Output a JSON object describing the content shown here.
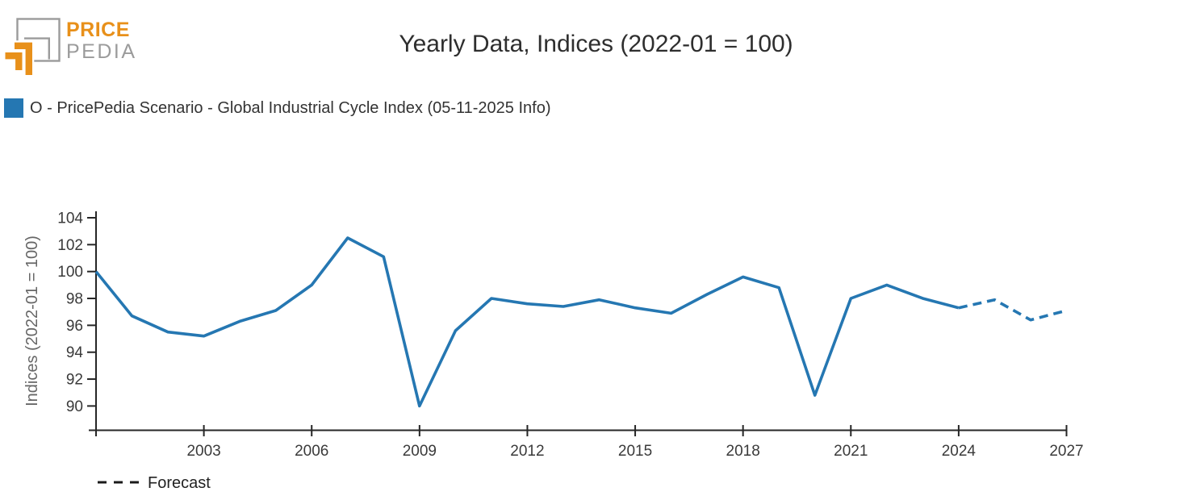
{
  "logo": {
    "brand_top": "PRICE",
    "brand_bottom": "PEDIA",
    "orange": "#E8901A",
    "gray": "#9B9B9B"
  },
  "header": {
    "title": "Yearly Data, Indices (2022-01 = 100)"
  },
  "legend": {
    "swatch_color": "#2577B2",
    "label": "O - PricePedia Scenario - Global Industrial Cycle Index (05-11-2025 Info)"
  },
  "forecast_legend": {
    "label": "Forecast"
  },
  "chart_data": {
    "type": "line",
    "title": "Yearly Data, Indices (2022-01 = 100)",
    "xlabel": "",
    "ylabel": "Indices (2022-01 = 100)",
    "grid": false,
    "legend_position": "top-left",
    "xlim": [
      2000,
      2027
    ],
    "ylim": [
      88.3,
      104.8
    ],
    "x_ticks": [
      2003,
      2006,
      2009,
      2012,
      2015,
      2018,
      2021,
      2024,
      2027
    ],
    "y_ticks": [
      90,
      92,
      94,
      96,
      98,
      100,
      102,
      104
    ],
    "series": [
      {
        "name": "O - PricePedia Scenario - Global Industrial Cycle Index (05-11-2025 Info)",
        "color": "#2577B2",
        "forecast_from": 2024,
        "forecast_style": "dashed",
        "x": [
          2000,
          2001,
          2002,
          2003,
          2004,
          2005,
          2006,
          2007,
          2008,
          2009,
          2010,
          2011,
          2012,
          2013,
          2014,
          2015,
          2016,
          2017,
          2018,
          2019,
          2020,
          2021,
          2022,
          2023,
          2024,
          2025,
          2026,
          2027
        ],
        "values": [
          100.0,
          96.7,
          95.5,
          95.2,
          96.3,
          97.1,
          99.0,
          102.5,
          101.1,
          90.0,
          95.6,
          98.0,
          97.6,
          97.4,
          97.9,
          97.3,
          96.9,
          98.3,
          99.6,
          98.8,
          90.8,
          98.0,
          99.0,
          98.0,
          97.3,
          97.9,
          96.4,
          97.1
        ]
      }
    ]
  }
}
